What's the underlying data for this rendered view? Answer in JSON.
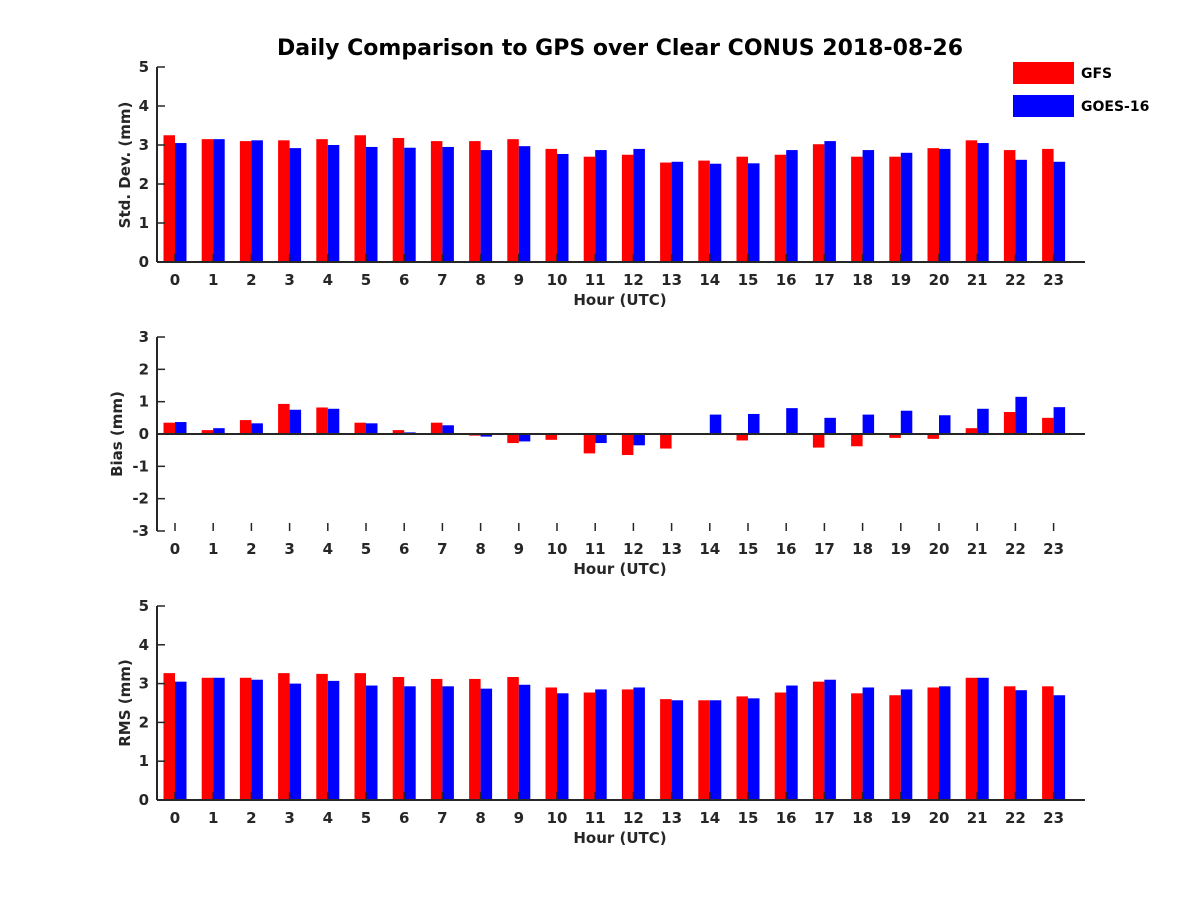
{
  "title": "Daily Comparison to GPS over Clear CONUS 2018-08-26",
  "colors": {
    "GFS": "#ff0000",
    "GOES-16": "#0000ff",
    "axis": "#262626",
    "background": "#ffffff"
  },
  "legend": [
    {
      "name": "GFS",
      "color": "#ff0000"
    },
    {
      "name": "GOES-16",
      "color": "#0000ff"
    }
  ],
  "chart_data": [
    {
      "type": "bar",
      "title": "Daily Comparison to GPS over Clear CONUS 2018-08-26",
      "xlabel": "Hour (UTC)",
      "ylabel": "Std. Dev. (mm)",
      "ylim": [
        0,
        5
      ],
      "yticks": [
        0,
        1,
        2,
        3,
        4,
        5
      ],
      "categories": [
        "0",
        "1",
        "2",
        "3",
        "4",
        "5",
        "6",
        "7",
        "8",
        "9",
        "10",
        "11",
        "12",
        "13",
        "14",
        "15",
        "16",
        "17",
        "18",
        "19",
        "20",
        "21",
        "22",
        "23"
      ],
      "series": [
        {
          "name": "GFS",
          "color": "#ff0000",
          "values": [
            3.25,
            3.15,
            3.1,
            3.12,
            3.15,
            3.25,
            3.18,
            3.1,
            3.1,
            3.15,
            2.9,
            2.7,
            2.75,
            2.55,
            2.6,
            2.7,
            2.75,
            3.02,
            2.7,
            2.7,
            2.92,
            3.12,
            2.87,
            2.9
          ]
        },
        {
          "name": "GOES-16",
          "color": "#0000ff",
          "values": [
            3.05,
            3.15,
            3.12,
            2.92,
            3.0,
            2.95,
            2.93,
            2.95,
            2.87,
            2.97,
            2.77,
            2.87,
            2.9,
            2.57,
            2.52,
            2.53,
            2.87,
            3.1,
            2.87,
            2.8,
            2.9,
            3.05,
            2.62,
            2.57
          ]
        }
      ],
      "legend_position": "top-right"
    },
    {
      "type": "bar",
      "xlabel": "Hour (UTC)",
      "ylabel": "Bias (mm)",
      "ylim": [
        -3,
        3
      ],
      "yticks": [
        -3,
        -2,
        -1,
        0,
        1,
        2,
        3
      ],
      "categories": [
        "0",
        "1",
        "2",
        "3",
        "4",
        "5",
        "6",
        "7",
        "8",
        "9",
        "10",
        "11",
        "12",
        "13",
        "14",
        "15",
        "16",
        "17",
        "18",
        "19",
        "20",
        "21",
        "22",
        "23"
      ],
      "series": [
        {
          "name": "GFS",
          "color": "#ff0000",
          "values": [
            0.35,
            0.12,
            0.43,
            0.93,
            0.82,
            0.35,
            0.12,
            0.35,
            -0.05,
            -0.28,
            -0.18,
            -0.6,
            -0.65,
            -0.45,
            -0.02,
            -0.2,
            -0.03,
            -0.42,
            -0.38,
            -0.12,
            -0.15,
            0.18,
            0.68,
            0.5
          ]
        },
        {
          "name": "GOES-16",
          "color": "#0000ff",
          "values": [
            0.37,
            0.18,
            0.33,
            0.75,
            0.78,
            0.33,
            0.05,
            0.27,
            -0.08,
            -0.23,
            0.0,
            -0.28,
            -0.35,
            -0.03,
            0.6,
            0.62,
            0.8,
            0.5,
            0.6,
            0.72,
            0.58,
            0.78,
            1.15,
            0.83
          ]
        }
      ]
    },
    {
      "type": "bar",
      "xlabel": "Hour (UTC)",
      "ylabel": "RMS (mm)",
      "ylim": [
        0,
        5
      ],
      "yticks": [
        0,
        1,
        2,
        3,
        4,
        5
      ],
      "categories": [
        "0",
        "1",
        "2",
        "3",
        "4",
        "5",
        "6",
        "7",
        "8",
        "9",
        "10",
        "11",
        "12",
        "13",
        "14",
        "15",
        "16",
        "17",
        "18",
        "19",
        "20",
        "21",
        "22",
        "23"
      ],
      "series": [
        {
          "name": "GFS",
          "color": "#ff0000",
          "values": [
            3.27,
            3.15,
            3.15,
            3.27,
            3.25,
            3.27,
            3.17,
            3.12,
            3.12,
            3.17,
            2.9,
            2.77,
            2.85,
            2.6,
            2.57,
            2.67,
            2.77,
            3.05,
            2.75,
            2.7,
            2.9,
            3.15,
            2.93,
            2.93
          ]
        },
        {
          "name": "GOES-16",
          "color": "#0000ff",
          "values": [
            3.05,
            3.15,
            3.1,
            3.0,
            3.07,
            2.95,
            2.93,
            2.93,
            2.87,
            2.97,
            2.75,
            2.85,
            2.9,
            2.57,
            2.57,
            2.62,
            2.95,
            3.1,
            2.9,
            2.85,
            2.93,
            3.15,
            2.83,
            2.7
          ]
        }
      ]
    }
  ]
}
